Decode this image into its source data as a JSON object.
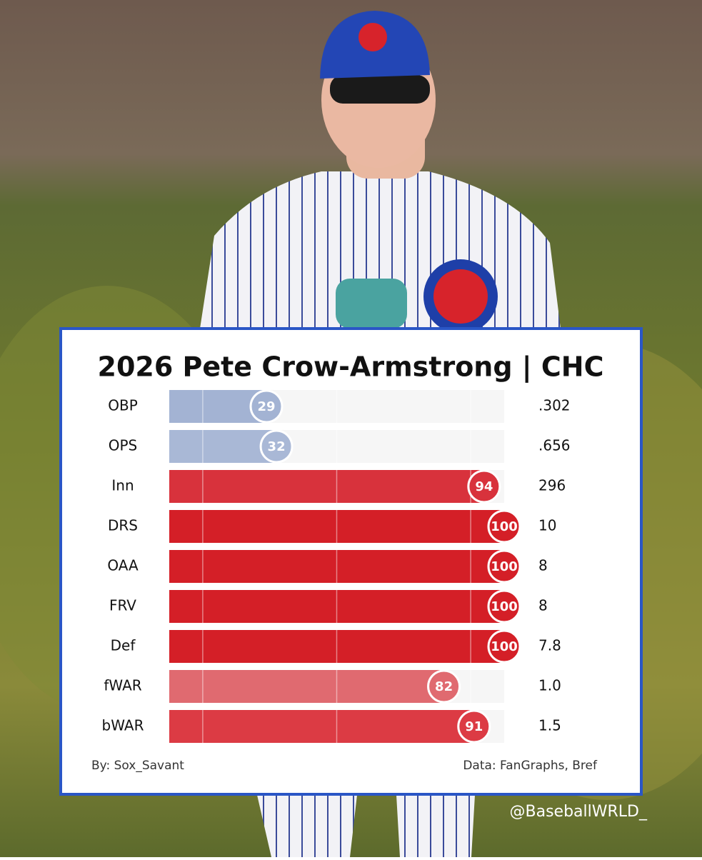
{
  "chart_data": {
    "type": "percentile_bar",
    "title": "2026 Pete Crow-Armstrong | CHC",
    "categories": [
      "OBP",
      "OPS",
      "Inn",
      "DRS",
      "OAA",
      "FRV",
      "Def",
      "fWAR",
      "bWAR"
    ],
    "values": [
      29,
      32,
      94,
      100,
      100,
      100,
      100,
      82,
      91
    ],
    "colors": [
      "#a3b3d3",
      "#a9b8d6",
      "#d8323c",
      "#d41f27",
      "#d41f27",
      "#d41f27",
      "#d41f27",
      "#e06a70",
      "#dc3b44"
    ],
    "stats": [
      ".302",
      ".656",
      "296",
      "10",
      "8",
      "8",
      "7.8",
      "1.0",
      "1.5"
    ],
    "xlim": [
      0,
      100
    ],
    "xticks": [
      10,
      50,
      90
    ],
    "grid": true,
    "credit": "By: Sox_Savant",
    "source": "Data: FanGraphs, Bref"
  },
  "watermark": "@BaseballWRLD_"
}
